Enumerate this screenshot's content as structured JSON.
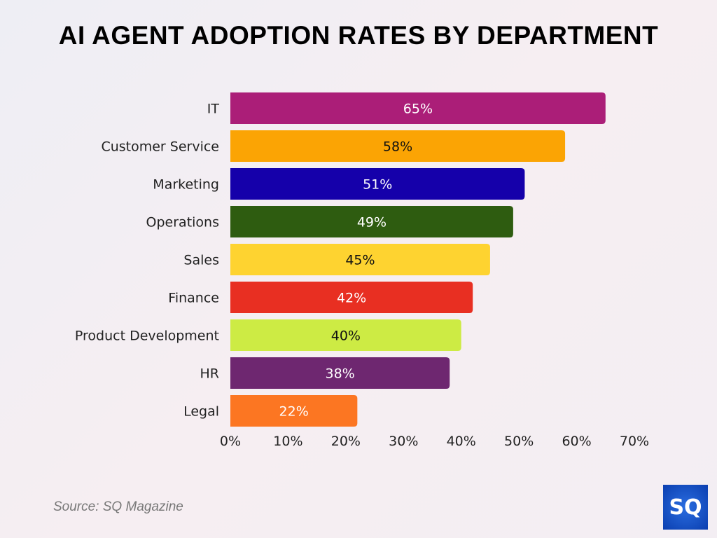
{
  "chart_data": {
    "type": "bar",
    "orientation": "horizontal",
    "title": "AI AGENT ADOPTION RATES BY DEPARTMENT",
    "categories": [
      "IT",
      "Customer Service",
      "Marketing",
      "Operations",
      "Sales",
      "Finance",
      "Product Development",
      "HR",
      "Legal"
    ],
    "values": [
      65,
      58,
      51,
      49,
      45,
      42,
      40,
      38,
      22
    ],
    "data_labels": [
      "65%",
      "58%",
      "51%",
      "49%",
      "45%",
      "42%",
      "40%",
      "38%",
      "22%"
    ],
    "colors": [
      "#ab1e78",
      "#fba404",
      "#1500aa",
      "#2e5c10",
      "#fed330",
      "#e82f22",
      "#cdeb44",
      "#6e2770",
      "#fc7622"
    ],
    "label_colors": [
      "#ffffff",
      "#111111",
      "#ffffff",
      "#ffffff",
      "#111111",
      "#ffffff",
      "#111111",
      "#ffffff",
      "#ffffff"
    ],
    "xlim": [
      0,
      70
    ],
    "xticks": [
      "0%",
      "10%",
      "20%",
      "30%",
      "40%",
      "50%",
      "60%",
      "70%"
    ],
    "grid": false,
    "legend": "none"
  },
  "source": "Source: SQ Magazine",
  "logo_text": "SQ"
}
